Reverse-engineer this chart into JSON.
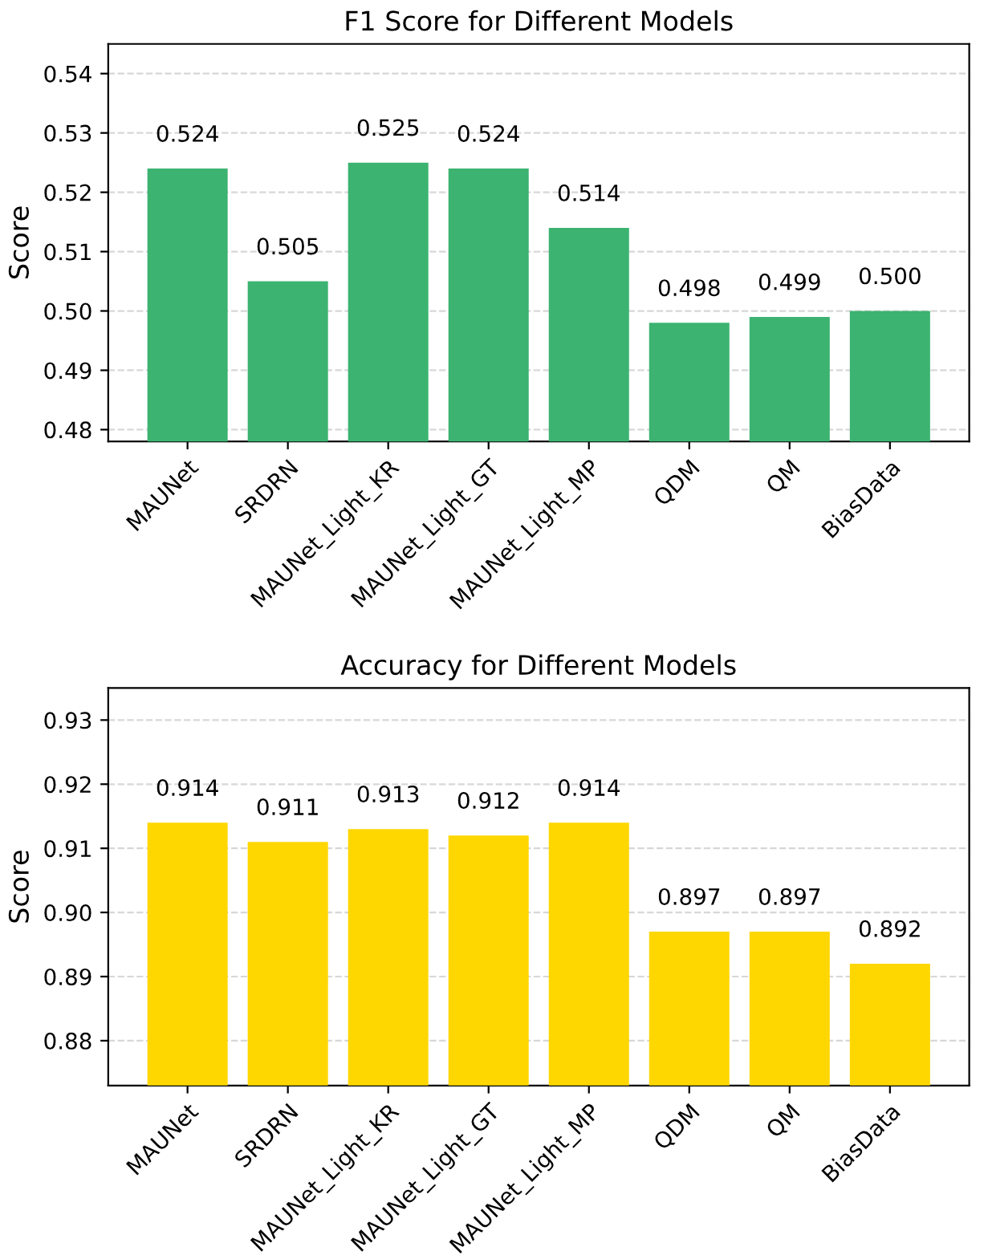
{
  "chart_data": [
    {
      "type": "bar",
      "title": "F1 Score for Different Models",
      "ylabel": "Score",
      "categories": [
        "MAUNet",
        "SRDRN",
        "MAUNet_Light_KR",
        "MAUNet_Light_GT",
        "MAUNet_Light_MP",
        "QDM",
        "QM",
        "BiasData"
      ],
      "values": [
        0.524,
        0.505,
        0.525,
        0.524,
        0.514,
        0.498,
        0.499,
        0.5
      ],
      "value_labels": [
        "0.524",
        "0.505",
        "0.525",
        "0.524",
        "0.514",
        "0.498",
        "0.499",
        "0.500"
      ],
      "color": "#3cb371",
      "ylim": [
        0.478,
        0.545
      ],
      "yticks": [
        0.48,
        0.49,
        {
          "value": 0.5,
          "label": "0.50"
        },
        0.51,
        0.52,
        0.53,
        0.54
      ],
      "grid": "y"
    },
    {
      "type": "bar",
      "title": "Accuracy for Different Models",
      "ylabel": "Score",
      "categories": [
        "MAUNet",
        "SRDRN",
        "MAUNet_Light_KR",
        "MAUNet_Light_GT",
        "MAUNet_Light_MP",
        "QDM",
        "QM",
        "BiasData"
      ],
      "values": [
        0.914,
        0.911,
        0.913,
        0.912,
        0.914,
        0.897,
        0.897,
        0.892
      ],
      "value_labels": [
        "0.914",
        "0.911",
        "0.913",
        "0.912",
        "0.914",
        "0.897",
        "0.897",
        "0.892"
      ],
      "color": "#ffd700",
      "ylim": [
        0.873,
        0.935
      ],
      "yticks": [
        0.88,
        0.89,
        {
          "value": 0.9,
          "label": "0.90"
        },
        0.91,
        0.92,
        0.93
      ],
      "grid": "y"
    }
  ]
}
